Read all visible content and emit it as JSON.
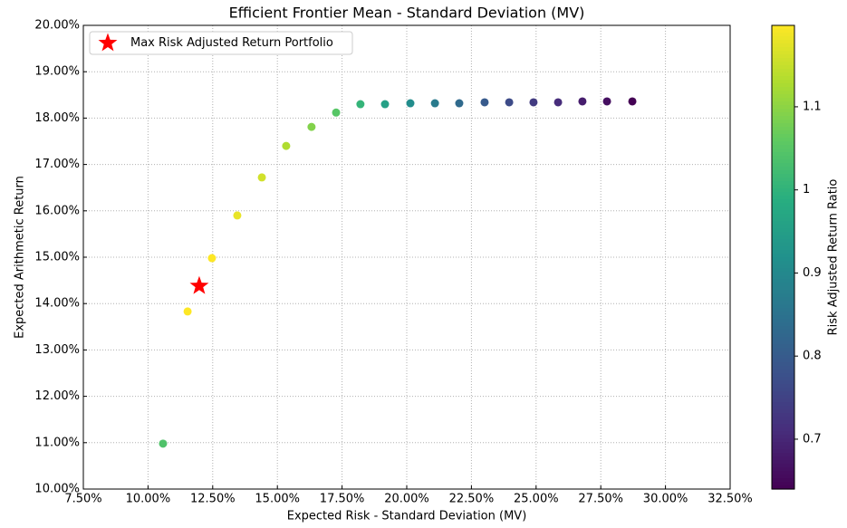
{
  "chart_data": {
    "type": "scatter",
    "title": "Efficient Frontier Mean - Standard Deviation (MV)",
    "xlabel": "Expected Risk - Standard Deviation (MV)",
    "ylabel": "Expected Arithmetic Return",
    "x": [
      10.58,
      11.53,
      12.47,
      13.45,
      14.4,
      15.34,
      16.32,
      17.27,
      18.21,
      19.16,
      20.14,
      21.09,
      22.03,
      23.01,
      23.96,
      24.9,
      25.85,
      26.79,
      27.74,
      28.72
    ],
    "values": [
      10.98,
      13.83,
      14.98,
      15.9,
      16.72,
      17.4,
      17.81,
      18.12,
      18.3,
      18.3,
      18.32,
      18.32,
      18.32,
      18.34,
      18.34,
      18.34,
      18.34,
      18.36,
      18.36,
      18.36
    ],
    "ratio": [
      1.04,
      1.2,
      1.2,
      1.18,
      1.16,
      1.13,
      1.09,
      1.05,
      1.005,
      0.955,
      0.91,
      0.869,
      0.831,
      0.797,
      0.766,
      0.737,
      0.71,
      0.685,
      0.662,
      0.639
    ],
    "colormap": "viridis",
    "colorbar": {
      "label": "Risk Adjusted Return Ratio",
      "lim": [
        0.64,
        1.198
      ],
      "ticks": [
        0.7,
        0.8,
        0.9,
        1.0,
        1.1
      ]
    },
    "highlight": {
      "name": "Max Risk Adjusted Return Portfolio",
      "x": 11.98,
      "y": 14.38,
      "color": "#ff0000"
    },
    "xlim": [
      7.5,
      32.5
    ],
    "xticks": [
      {
        "value": 7.5,
        "label": "7.50%"
      },
      {
        "value": 10,
        "label": "10.00%"
      },
      {
        "value": 12.5,
        "label": "12.50%"
      },
      {
        "value": 15,
        "label": "15.00%"
      },
      {
        "value": 17.5,
        "label": "17.50%"
      },
      {
        "value": 20,
        "label": "20.00%"
      },
      {
        "value": 22.5,
        "label": "22.50%"
      },
      {
        "value": 25,
        "label": "25.00%"
      },
      {
        "value": 27.5,
        "label": "27.50%"
      },
      {
        "value": 30,
        "label": "30.00%"
      },
      {
        "value": 32.5,
        "label": "32.50%"
      }
    ],
    "ylim": [
      10,
      20
    ],
    "yticks": [
      {
        "value": 10,
        "label": "10.00%"
      },
      {
        "value": 11,
        "label": "11.00%"
      },
      {
        "value": 12,
        "label": "12.00%"
      },
      {
        "value": 13,
        "label": "13.00%"
      },
      {
        "value": 14,
        "label": "14.00%"
      },
      {
        "value": 15,
        "label": "15.00%"
      },
      {
        "value": 16,
        "label": "16.00%"
      },
      {
        "value": 17,
        "label": "17.00%"
      },
      {
        "value": 18,
        "label": "18.00%"
      },
      {
        "value": 19,
        "label": "19.00%"
      },
      {
        "value": 20,
        "label": "20.00%"
      }
    ],
    "grid": true,
    "legend": "upper left"
  }
}
